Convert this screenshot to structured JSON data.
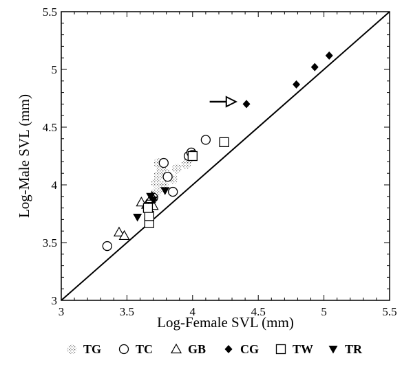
{
  "chart_data": {
    "type": "scatter",
    "xlabel": "Log-Female SVL (mm)",
    "ylabel": "Log-Male SVL (mm)",
    "xlim": [
      3,
      5.5
    ],
    "ylim": [
      3,
      5.5
    ],
    "x_ticks": [
      "3",
      "3.5",
      "4",
      "4.5",
      "5",
      "5.5"
    ],
    "y_ticks": [
      "3",
      "3.5",
      "4",
      "4.5",
      "5",
      "5.5"
    ],
    "grid": false,
    "legend_placement": "bottom",
    "reference_line": {
      "from": [
        3,
        3
      ],
      "to": [
        5.5,
        5.5
      ]
    },
    "annotation": {
      "type": "arrow",
      "points_to": "CG",
      "tail": [
        4.13,
        4.72
      ],
      "head": [
        4.33,
        4.72
      ]
    },
    "series": [
      {
        "name": "TG",
        "marker": "stipple",
        "points": [
          [
            3.72,
            4.02
          ],
          [
            3.74,
            4.08
          ],
          [
            3.76,
            4.14
          ],
          [
            3.8,
            4.1
          ],
          [
            3.85,
            4.05
          ],
          [
            3.78,
            3.99
          ],
          [
            3.72,
            3.93
          ],
          [
            3.95,
            4.18
          ],
          [
            3.97,
            4.22
          ],
          [
            3.74,
            4.19
          ],
          [
            3.88,
            4.14
          ],
          [
            3.77,
            3.98
          ]
        ]
      },
      {
        "name": "TC",
        "marker": "open-circle",
        "points": [
          [
            3.35,
            3.47
          ],
          [
            3.7,
            3.89
          ],
          [
            3.78,
            4.19
          ],
          [
            3.81,
            4.07
          ],
          [
            3.85,
            3.94
          ],
          [
            3.97,
            4.25
          ],
          [
            3.99,
            4.28
          ],
          [
            4.0,
            4.26
          ],
          [
            4.1,
            4.39
          ]
        ]
      },
      {
        "name": "GB",
        "marker": "open-triangle",
        "points": [
          [
            3.44,
            3.59
          ],
          [
            3.48,
            3.56
          ],
          [
            3.61,
            3.85
          ],
          [
            3.65,
            3.83
          ],
          [
            3.68,
            3.88
          ],
          [
            3.7,
            3.82
          ],
          [
            3.69,
            3.9
          ]
        ]
      },
      {
        "name": "CG",
        "marker": "filled-diamond",
        "points": [
          [
            4.41,
            4.7
          ],
          [
            4.79,
            4.87
          ],
          [
            4.93,
            5.02
          ],
          [
            5.04,
            5.12
          ]
        ]
      },
      {
        "name": "TW",
        "marker": "open-square",
        "points": [
          [
            3.67,
            3.67
          ],
          [
            3.67,
            3.73
          ],
          [
            3.66,
            3.8
          ],
          [
            4.0,
            4.25
          ],
          [
            4.24,
            4.37
          ]
        ]
      },
      {
        "name": "TR",
        "marker": "filled-triangle-down",
        "points": [
          [
            3.58,
            3.72
          ],
          [
            3.68,
            3.9
          ],
          [
            3.7,
            3.87
          ],
          [
            3.79,
            3.95
          ]
        ]
      }
    ],
    "legend": [
      "TG",
      "TC",
      "GB",
      "CG",
      "TW",
      "TR"
    ]
  }
}
